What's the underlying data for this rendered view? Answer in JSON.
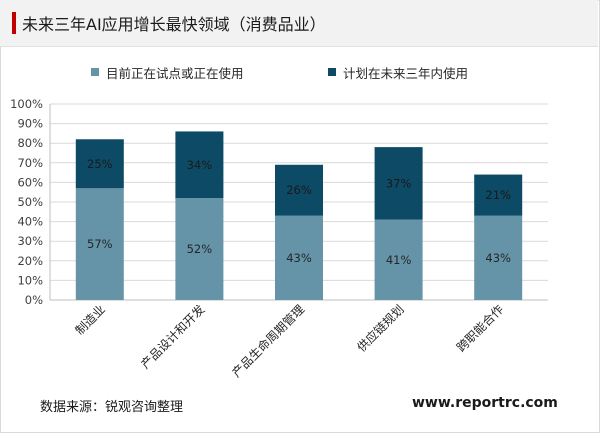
{
  "header": {
    "title": "未来三年AI应用增长最快领域（消费品业）"
  },
  "footer": {
    "source": "数据来源：锐观咨询整理",
    "website": "www.reportrc.com"
  },
  "colors": {
    "accent": "#c00000",
    "series_current": "#6594a8",
    "series_planned": "#0c4a66",
    "label_on_current": "#262626",
    "label_on_planned": "#1a1a1a"
  },
  "chart_data": {
    "type": "bar",
    "stacked": true,
    "categories": [
      "制造业",
      "产品设计和开发",
      "产品生命周期管理",
      "供应链规划",
      "跨职能合作"
    ],
    "series": [
      {
        "name": "目前正在试点或正在使用",
        "values": [
          57,
          52,
          43,
          41,
          43
        ],
        "labels": [
          "57%",
          "52%",
          "43%",
          "41%",
          "43%"
        ]
      },
      {
        "name": "计划在未来三年内使用",
        "values": [
          25,
          34,
          26,
          37,
          21
        ],
        "labels": [
          "25%",
          "34%",
          "26%",
          "37%",
          "21%"
        ]
      }
    ],
    "ylim": [
      0,
      100
    ],
    "yticks": [
      "0%",
      "10%",
      "20%",
      "30%",
      "40%",
      "50%",
      "60%",
      "70%",
      "80%",
      "90%",
      "100%"
    ],
    "grid": true,
    "legend_position": "top"
  }
}
